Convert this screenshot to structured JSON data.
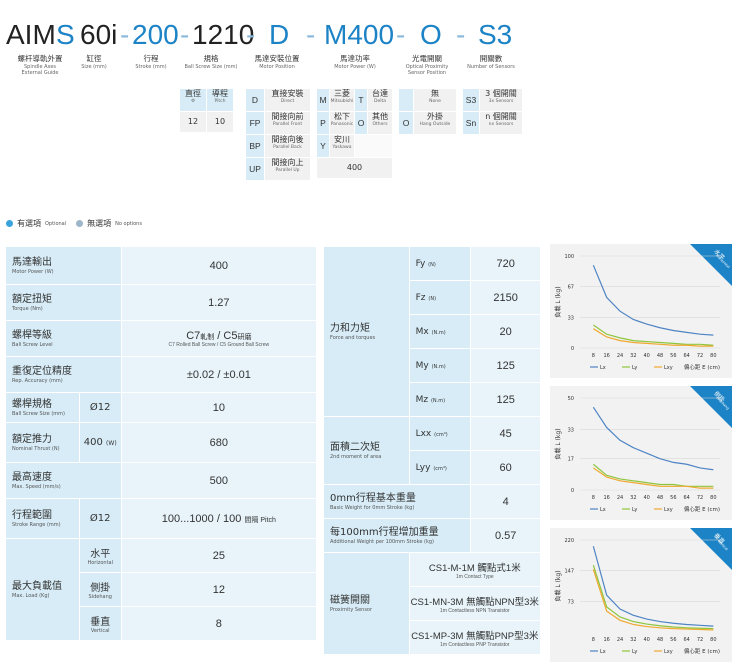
{
  "code": {
    "aim": "AIM",
    "s": "S",
    "sixty": "60i",
    "d1": "-",
    "stroke": "200",
    "d2": "-",
    "spec": "1210",
    "d3": "-",
    "motor_pos": "D",
    "d4": "-",
    "motor": "M400",
    "d5": "-",
    "sensor": "O",
    "d6": "-",
    "count": "S3"
  },
  "captions": [
    {
      "zh": "螺杆導軌外置",
      "en1": "Spindle Axes",
      "en2": "External Guide"
    },
    {
      "zh": "缸徑",
      "en1": "Size (mm)"
    },
    {
      "zh": "行程",
      "en1": "Stroke (mm)"
    },
    {
      "zh": "規格",
      "en1": "Ball Screw Size (mm)"
    },
    {
      "zh": "馬達安裝位置",
      "en1": "Motor Position"
    },
    {
      "zh": "馬達功率",
      "en1": "Motor Power (W)"
    },
    {
      "zh": "光電開關",
      "en1": "Optical Proximity",
      "en2": "Sensor Position"
    },
    {
      "zh": "開關數",
      "en1": "Number of Sensors"
    }
  ],
  "spec_table": {
    "h1": "直徑",
    "h1s": "Φ",
    "h2": "導程",
    "h2s": "Pitch",
    "v1": "12",
    "v2": "10"
  },
  "motor_positions": [
    {
      "code": "D",
      "zh": "直接安裝",
      "en": "Direct"
    },
    {
      "code": "FP",
      "zh": "間接向前",
      "en": "Parallel Front"
    },
    {
      "code": "BP",
      "zh": "間接向後",
      "en": "Parallel Back"
    },
    {
      "code": "UP",
      "zh": "間接向上",
      "en": "Parallel Up"
    }
  ],
  "motors": [
    {
      "code": "M",
      "zh": "三菱",
      "en": "Mitsubishi"
    },
    {
      "code": "T",
      "zh": "台達",
      "en": "Delta"
    },
    {
      "code": "P",
      "zh": "松下",
      "en": "Panasonic"
    },
    {
      "code": "O",
      "zh": "其他",
      "en": "Others"
    },
    {
      "code": "Y",
      "zh": "安川",
      "en": "Yaskawa"
    }
  ],
  "motor_power": "400",
  "sensors": [
    {
      "code": "",
      "zh": "無",
      "en": "None"
    },
    {
      "code": "O",
      "zh": "外掛",
      "en": "Hang Outside"
    }
  ],
  "sensor_counts": [
    {
      "code": "S3",
      "zh": "3 個開關",
      "en": "3x Sensors"
    },
    {
      "code": "Sn",
      "zh": "n 個開關",
      "en": "nx Sensors"
    }
  ],
  "legend": {
    "optional": "有選項",
    "optional_en": "Optional",
    "none": "無選項",
    "none_en": "No options"
  },
  "colors": {
    "optional": "#39a3dc",
    "none": "#9db7c8",
    "lx": "#4f84c4",
    "ly": "#8dc63f",
    "lxy": "#f0a830"
  },
  "left_table": {
    "motor_power": {
      "zh": "馬達輸出",
      "en": "Motor Power (W)",
      "val": "400"
    },
    "torque": {
      "zh": "額定扭矩",
      "en": "Torque (Nm)",
      "val": "1.27"
    },
    "screw_grade": {
      "zh": "螺桿等級",
      "en": "Ball Screw Level",
      "val_a": "C7",
      "val_a2": "軋制",
      "val_b": " / C5",
      "val_b2": "研磨",
      "val_en": "C7 Rolled Ball Screw / C5 Ground Ball Screw"
    },
    "repeat": {
      "zh": "重復定位精度",
      "en": "Rep. Accuracy (mm)",
      "val": "±0.02 / ±0.01"
    },
    "screw_spec": {
      "zh": "螺桿規格",
      "en": "Ball Screw Size (mm)",
      "sub": "Ø12",
      "val": "10"
    },
    "thrust": {
      "zh": "額定推力",
      "en": "Nominal Thrust (N)",
      "sub": "400",
      "sub_unit": "(W)",
      "val": "680"
    },
    "speed": {
      "zh": "最高速度",
      "en": "Max. Speed (mm/s)",
      "val": "500"
    },
    "stroke": {
      "zh": "行程範圍",
      "en": "Stroke Range (mm)",
      "sub": "Ø12",
      "val": "100...1000 / 100",
      "val_unit": "間隔 Pitch"
    },
    "load": {
      "zh": "最大負載值",
      "en": "Max. Load (Kg)",
      "rows": [
        {
          "zh": "水平",
          "en": "Horizontal",
          "val": "25"
        },
        {
          "zh": "側掛",
          "en": "Sidehang",
          "val": "12"
        },
        {
          "zh": "垂直",
          "en": "Vertical",
          "val": "8"
        }
      ]
    }
  },
  "right_table": {
    "force": {
      "zh": "力和力矩",
      "en": "Force and torques",
      "rows": [
        {
          "sym": "Fy",
          "unit": "(N)",
          "val": "720"
        },
        {
          "sym": "Fz",
          "unit": "(N)",
          "val": "2150"
        },
        {
          "sym": "Mx",
          "unit": "(N.m)",
          "val": "20"
        },
        {
          "sym": "My",
          "unit": "(N.m)",
          "val": "125"
        },
        {
          "sym": "Mz",
          "unit": "(N.m)",
          "val": "125"
        }
      ]
    },
    "moment": {
      "zh": "面積二次矩",
      "en": "2nd moment of area",
      "rows": [
        {
          "sym": "Lxx",
          "unit": "(cm⁴)",
          "val": "45"
        },
        {
          "sym": "Lyy",
          "unit": "(cm⁴)",
          "val": "60"
        }
      ]
    },
    "weight0": {
      "zh": "0mm行程基本重量",
      "en": "Basic Weight for 0mm Stroke (kg)",
      "val": "4"
    },
    "weight100": {
      "zh": "每100mm行程增加重量",
      "en": "Additional Weight per 100mm Stroke (kg)",
      "val": "0.57"
    },
    "sensor": {
      "zh": "磁簧開關",
      "en": "Proximity Sensor",
      "rows": [
        {
          "zh": "CS1-M-1M 觸點式1米",
          "en": "1m Contact Type"
        },
        {
          "zh": "CS1-MN-3M 無觸點NPN型3米",
          "en": "1m Contactless NPN Transistor"
        },
        {
          "zh": "CS1-MP-3M 無觸點PNP型3米",
          "en": "1m Contactless PNP Transistor"
        }
      ]
    }
  },
  "chart_data": [
    {
      "type": "line",
      "badge": "水平",
      "badge_en": "Horizontal",
      "ylabel": "負載 L (kg)",
      "xlabel": "偏心距 E (cm)",
      "x": [
        8,
        16,
        24,
        32,
        40,
        48,
        56,
        64,
        72,
        80
      ],
      "yticks": [
        0,
        33,
        67,
        100
      ],
      "ylim": [
        0,
        100
      ],
      "series": [
        {
          "name": "Lx",
          "values": [
            90,
            55,
            40,
            31,
            26,
            22,
            19,
            17,
            15,
            14
          ]
        },
        {
          "name": "Ly",
          "values": [
            25,
            15,
            11,
            8,
            7,
            6,
            5,
            4,
            4,
            3
          ]
        },
        {
          "name": "Lxy",
          "values": [
            21,
            12,
            8,
            6,
            5,
            4,
            3,
            3,
            2,
            2
          ]
        }
      ]
    },
    {
      "type": "line",
      "badge": "側掛",
      "badge_en": "Sidehang",
      "ylabel": "負載 L (kg)",
      "xlabel": "偏心距 E (cm)",
      "x": [
        8,
        16,
        24,
        32,
        40,
        48,
        56,
        64,
        72,
        80
      ],
      "yticks": [
        0,
        17,
        33,
        50
      ],
      "ylim": [
        0,
        50
      ],
      "series": [
        {
          "name": "Lx",
          "values": [
            45,
            34,
            27,
            23,
            20,
            17,
            15,
            14,
            12,
            11
          ]
        },
        {
          "name": "Ly",
          "values": [
            14,
            8,
            6,
            5,
            4,
            3,
            3,
            2,
            2,
            2
          ]
        },
        {
          "name": "Lxy",
          "values": [
            12,
            7,
            5,
            4,
            3,
            2,
            2,
            2,
            1,
            1
          ]
        }
      ]
    },
    {
      "type": "line",
      "badge": "垂直",
      "badge_en": "Vertical",
      "ylabel": "負載 L (kg)",
      "xlabel": "偏心距 E (cm)",
      "x": [
        8,
        16,
        24,
        32,
        40,
        48,
        56,
        64,
        72,
        80
      ],
      "yticks": [
        73,
        147,
        220
      ],
      "ylim": [
        0,
        220
      ],
      "series": [
        {
          "name": "Lx",
          "values": [
            205,
            88,
            55,
            40,
            31,
            25,
            21,
            18,
            16,
            14
          ]
        },
        {
          "name": "Ly",
          "values": [
            160,
            60,
            36,
            25,
            19,
            15,
            12,
            10,
            9,
            8
          ]
        },
        {
          "name": "Lxy",
          "values": [
            150,
            50,
            28,
            18,
            13,
            10,
            8,
            7,
            6,
            5
          ]
        }
      ]
    }
  ]
}
